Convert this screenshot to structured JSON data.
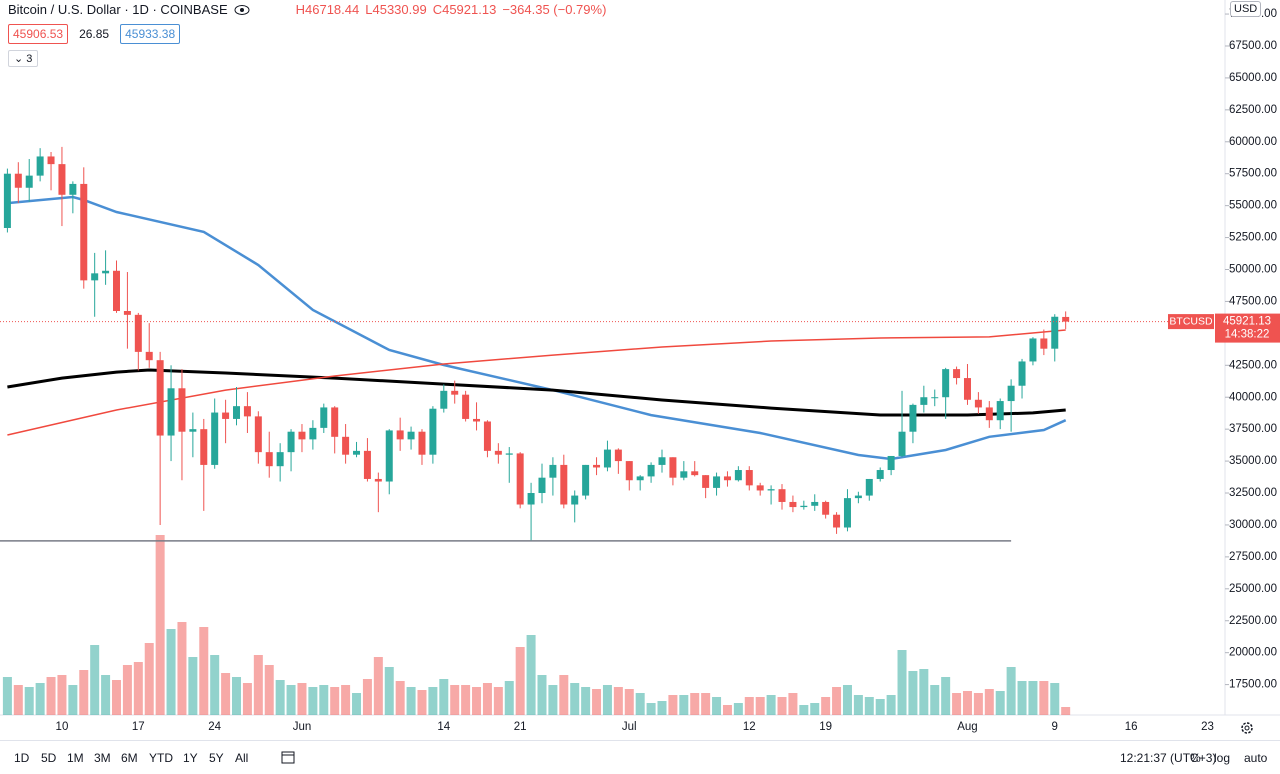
{
  "chart_data": {
    "type": "candlestick",
    "title": "Bitcoin / U.S. Dollar · 1D · COINBASE",
    "ohlc_labels": [
      "H46718.44",
      "L45330.99",
      "C45921.13",
      "−364.35 (−0.79%)"
    ],
    "indicator_values": [
      {
        "value": 45906.53,
        "color": "#ef5350"
      },
      {
        "value": 26.85
      },
      {
        "value": 45933.38,
        "color": "#4a8fd4"
      }
    ],
    "indicator_count": "3",
    "categories": [
      null,
      null,
      null,
      null,
      null,
      "10",
      null,
      null,
      null,
      null,
      null,
      null,
      "17",
      null,
      null,
      null,
      null,
      null,
      null,
      "24",
      null,
      null,
      null,
      null,
      null,
      null,
      null,
      "Jun",
      null,
      null,
      null,
      null,
      null,
      null,
      null,
      null,
      null,
      null,
      null,
      null,
      "14",
      null,
      null,
      null,
      null,
      null,
      null,
      "21",
      null,
      null,
      null,
      null,
      null,
      null,
      null,
      null,
      null,
      "Jul",
      null,
      null,
      null,
      null,
      null,
      null,
      null,
      null,
      null,
      null,
      "12",
      null,
      null,
      null,
      null,
      null,
      null,
      "19",
      null,
      null,
      null,
      null,
      null,
      null,
      null,
      null,
      null,
      null,
      null,
      null,
      "Aug",
      null,
      null,
      null,
      null,
      null,
      null,
      null,
      "9",
      null
    ],
    "extra_x_labels": [
      "16",
      "23"
    ],
    "open": [
      53250,
      57500,
      56400,
      57350,
      58850,
      58250,
      55850,
      56700,
      49150,
      49700,
      49900,
      46750,
      46450,
      43550,
      42900,
      37000,
      40700,
      37300,
      37500,
      34700,
      38800,
      38300,
      39300,
      38500,
      35700,
      34600,
      35700,
      37300,
      36700,
      37600,
      39200,
      36900,
      35500,
      35800,
      33600,
      33400,
      37400,
      36700,
      37300,
      35500,
      39100,
      40500,
      40200,
      38300,
      38100,
      35800,
      35500,
      35600,
      31600,
      32500,
      33700,
      34700,
      31600,
      32300,
      34700,
      34500,
      35900,
      35000,
      33500,
      33800,
      34700,
      35300,
      33700,
      34200,
      33900,
      32900,
      33800,
      33500,
      34300,
      33100,
      32700,
      32800,
      31800,
      31400,
      31500,
      31800,
      30800,
      29800,
      32100,
      32300,
      33600,
      34300,
      35400,
      37300,
      39400,
      40000,
      40000,
      42200,
      41500,
      39800,
      39200,
      38200,
      39700,
      40900,
      42800,
      44600,
      43800,
      46285.48
    ],
    "high": [
      57900,
      58400,
      58650,
      59500,
      59200,
      59600,
      56900,
      58000,
      51300,
      51500,
      50700,
      49800,
      46600,
      45800,
      43550,
      42500,
      42200,
      38800,
      38300,
      39900,
      39800,
      40800,
      40400,
      38900,
      37300,
      36400,
      37500,
      37900,
      38200,
      39500,
      39300,
      37900,
      36500,
      36800,
      34100,
      37500,
      38400,
      37700,
      37500,
      39300,
      41000,
      41300,
      40500,
      39600,
      38200,
      36400,
      36100,
      35700,
      33300,
      34800,
      35300,
      35500,
      32700,
      34700,
      35300,
      36600,
      36000,
      35000,
      33900,
      34900,
      35900,
      35300,
      35000,
      35000,
      33900,
      34100,
      34200,
      34600,
      34600,
      33300,
      33100,
      33200,
      32300,
      31900,
      32400,
      31900,
      31000,
      32800,
      32600,
      33600,
      34500,
      35400,
      40500,
      39500,
      40900,
      40600,
      42300,
      42400,
      42600,
      40400,
      39700,
      39900,
      41400,
      43000,
      44700,
      45300,
      46500,
      46718.44
    ],
    "low": [
      52900,
      55200,
      55300,
      56900,
      56200,
      53400,
      54400,
      48500,
      46300,
      48800,
      46600,
      43800,
      42100,
      42300,
      30000,
      35000,
      33500,
      35300,
      31100,
      34400,
      36400,
      37800,
      37200,
      34800,
      33700,
      33400,
      34200,
      35700,
      35900,
      37200,
      35600,
      34800,
      35300,
      33400,
      31000,
      32400,
      35800,
      35900,
      34700,
      34800,
      38800,
      39500,
      38100,
      37400,
      35300,
      34800,
      33300,
      31300,
      28800,
      31700,
      32300,
      31300,
      30200,
      32000,
      33900,
      34200,
      34000,
      32700,
      32700,
      33300,
      34100,
      33100,
      33500,
      33800,
      32100,
      32300,
      33000,
      33400,
      32700,
      32300,
      31600,
      31200,
      31000,
      31200,
      31100,
      30500,
      29300,
      29500,
      31700,
      31900,
      33400,
      33900,
      35300,
      36400,
      38800,
      39300,
      38300,
      41000,
      39400,
      38700,
      37600,
      37500,
      37300,
      39900,
      42500,
      43300,
      42800,
      45330.99
    ],
    "close": [
      57500,
      56400,
      57350,
      58850,
      58250,
      55850,
      56700,
      49150,
      49700,
      49900,
      46750,
      46450,
      43550,
      42900,
      37000,
      40700,
      37300,
      37500,
      34700,
      38800,
      38300,
      39300,
      38500,
      35700,
      34600,
      35700,
      37300,
      36700,
      37600,
      39200,
      36900,
      35500,
      35800,
      33600,
      33400,
      37400,
      36700,
      37300,
      35500,
      39100,
      40500,
      40200,
      38300,
      38100,
      35800,
      35500,
      35600,
      31600,
      32500,
      33700,
      34700,
      31600,
      32300,
      34700,
      34500,
      35900,
      35000,
      33500,
      33800,
      34700,
      35300,
      33700,
      34200,
      33900,
      32900,
      33800,
      33500,
      34300,
      33100,
      32700,
      32800,
      31800,
      31400,
      31500,
      31800,
      30800,
      29800,
      32100,
      32300,
      33600,
      34300,
      35400,
      37300,
      39400,
      40000,
      40000,
      42200,
      41500,
      39800,
      39200,
      38200,
      39700,
      40900,
      42800,
      44600,
      43800,
      46300,
      45921.13
    ],
    "volume": [
      38,
      30,
      28,
      32,
      38,
      40,
      30,
      45,
      70,
      40,
      35,
      50,
      53,
      72,
      180,
      86,
      93,
      58,
      88,
      60,
      42,
      38,
      32,
      60,
      50,
      35,
      30,
      32,
      28,
      30,
      28,
      30,
      22,
      36,
      58,
      48,
      34,
      28,
      25,
      28,
      36,
      30,
      30,
      28,
      32,
      28,
      34,
      68,
      80,
      40,
      30,
      40,
      32,
      28,
      26,
      30,
      28,
      26,
      22,
      12,
      14,
      20,
      20,
      22,
      22,
      18,
      10,
      12,
      18,
      18,
      20,
      18,
      22,
      10,
      12,
      18,
      28,
      30,
      20,
      18,
      16,
      20,
      65,
      44,
      46,
      30,
      38,
      22,
      24,
      22,
      26,
      24,
      48,
      34,
      34,
      34,
      32,
      8
    ],
    "up_color": "#26a69a",
    "down_color": "#ef5350",
    "series": [
      {
        "color": "#4a8fd4",
        "width": 2.5,
        "x": [
          0,
          6,
          7,
          10,
          18,
          23,
          28,
          35,
          40,
          50,
          59,
          69,
          78,
          81,
          86,
          90,
          95,
          97
        ],
        "values": [
          55200,
          55680,
          55440,
          54500,
          52940,
          50350,
          46830,
          43700,
          42520,
          40560,
          38600,
          37200,
          35480,
          35160,
          35870,
          36900,
          37430,
          38200
        ]
      },
      {
        "color": "#000000",
        "width": 3,
        "x": [
          0,
          5,
          10,
          13,
          20,
          30,
          40,
          50,
          60,
          70,
          80,
          88,
          94,
          97
        ],
        "values": [
          40800,
          41500,
          41970,
          42130,
          41900,
          41500,
          41030,
          40560,
          39780,
          39150,
          38610,
          38610,
          38770,
          39000
        ]
      },
      {
        "color": "#f0493e",
        "width": 1.5,
        "x": [
          0,
          10,
          20,
          30,
          40,
          50,
          60,
          70,
          80,
          90,
          97
        ],
        "values": [
          37040,
          39000,
          40560,
          41660,
          42600,
          43300,
          43930,
          44400,
          44640,
          44720,
          45260
        ]
      }
    ],
    "hline": {
      "value": 28750,
      "end_x": 92,
      "color": "#787b86"
    },
    "last_price": {
      "symbol": "BTCUSD",
      "price": 45921.13,
      "countdown": "14:38:22",
      "color": "#ef5350"
    },
    "currency": "USD",
    "ylim": [
      15120,
      71100
    ],
    "yticks": [
      {
        "value": 17500,
        "label": "17500.00"
      },
      {
        "value": 20000,
        "label": "20000.00"
      },
      {
        "value": 22500,
        "label": "22500.00"
      },
      {
        "value": 25000,
        "label": "25000.00"
      },
      {
        "value": 27500,
        "label": "27500.00"
      },
      {
        "value": 30000,
        "label": "30000.00"
      },
      {
        "value": 32500,
        "label": "32500.00"
      },
      {
        "value": 35000,
        "label": "35000.00"
      },
      {
        "value": 37500,
        "label": "37500.00"
      },
      {
        "value": 40000,
        "label": "40000.00"
      },
      {
        "value": 42500,
        "label": "42500.00"
      },
      {
        "value": 45000,
        "label": "45000.00"
      },
      {
        "value": 47500,
        "label": "47500.00"
      },
      {
        "value": 50000,
        "label": "50000.00"
      },
      {
        "value": 52500,
        "label": "52500.00"
      },
      {
        "value": 55000,
        "label": "55000.00"
      },
      {
        "value": 57500,
        "label": "57500.00"
      },
      {
        "value": 60000,
        "label": "60000.00"
      },
      {
        "value": 62500,
        "label": "62500.00"
      },
      {
        "value": 65000,
        "label": "65000.00"
      },
      {
        "value": 67500,
        "label": "67500.00"
      },
      {
        "value": 70000,
        "label": "70000.00"
      }
    ],
    "grid": false
  },
  "toolbar": {
    "ranges": [
      "1D",
      "5D",
      "1M",
      "3M",
      "6M",
      "YTD",
      "1Y",
      "5Y",
      "All"
    ],
    "clock": "12:21:37 (UTC+3)",
    "options": [
      "%",
      "log",
      "auto"
    ]
  }
}
